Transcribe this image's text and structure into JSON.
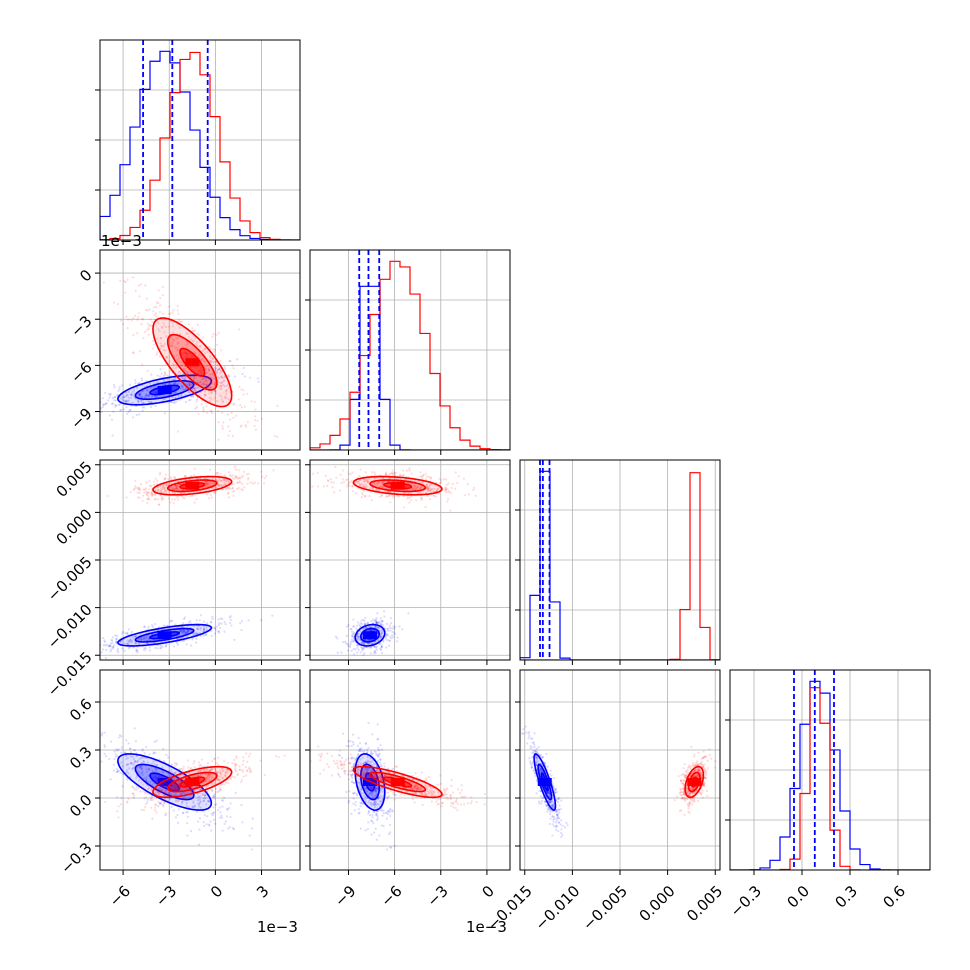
{
  "colors": {
    "blue": "#0000ff",
    "red": "#ff0000",
    "grid": "#b0b0b0"
  },
  "offset_labels": {
    "p1_left": "1e−3",
    "p1_bottom": "1e−3",
    "p2_bottom": "1e−3"
  },
  "chart_data": {
    "type": "corner",
    "parameters": [
      {
        "range": [
          -0.0075,
          0.0055
        ],
        "ticks": [
          -0.006,
          -0.003,
          0.0,
          0.003
        ],
        "tick_labels": [
          "−6",
          "−3",
          "0",
          "3"
        ],
        "offset": "1e−3"
      },
      {
        "range": [
          -0.0115,
          0.0015
        ],
        "ticks": [
          -0.009,
          -0.006,
          -0.003,
          0.0
        ],
        "tick_labels": [
          "−9",
          "−6",
          "−3",
          "0"
        ],
        "offset": "1e−3"
      },
      {
        "range": [
          -0.0155,
          0.0055
        ],
        "ticks": [
          -0.015,
          -0.01,
          -0.005,
          0.0,
          0.005
        ],
        "tick_labels": [
          "−0.015",
          "−0.010",
          "−0.005",
          "0.000",
          "0.005"
        ]
      },
      {
        "range": [
          -0.45,
          0.8
        ],
        "ticks": [
          -0.3,
          0.0,
          0.3,
          0.6
        ],
        "tick_labels": [
          "−0.3",
          "0.0",
          "0.3",
          "0.6"
        ]
      }
    ],
    "series": [
      {
        "color": "#0000ff",
        "means": [
          -0.0033,
          -0.0076,
          -0.0129,
          0.1
        ],
        "sds": [
          0.0019,
          0.0006,
          0.0007,
          0.11
        ],
        "corr": [
          [
            1,
            0.6,
            0.7,
            -0.75
          ],
          [
            0.6,
            1,
            0.2,
            -0.35
          ],
          [
            0.7,
            0.2,
            1,
            -0.85
          ],
          [
            -0.75,
            -0.35,
            -0.85,
            1
          ]
        ],
        "quantiles": [
          [
            -0.0047,
            -0.0028,
            -0.0005
          ],
          [
            -0.0083,
            -0.0077,
            -0.007
          ],
          [
            -0.0134,
            -0.0131,
            -0.0124
          ],
          [
            -0.05,
            0.08,
            0.2
          ]
        ]
      },
      {
        "color": "#ff0000",
        "means": [
          -0.0015,
          -0.0058,
          0.0028,
          0.1
        ],
        "sds": [
          0.0016,
          0.0018,
          0.0006,
          0.06
        ],
        "corr": [
          [
            1,
            -0.75,
            0.45,
            0.65
          ],
          [
            -0.75,
            1,
            -0.35,
            -0.8
          ],
          [
            0.45,
            -0.35,
            1,
            0.45
          ],
          [
            0.65,
            -0.8,
            0.45,
            1
          ]
        ]
      }
    ]
  }
}
